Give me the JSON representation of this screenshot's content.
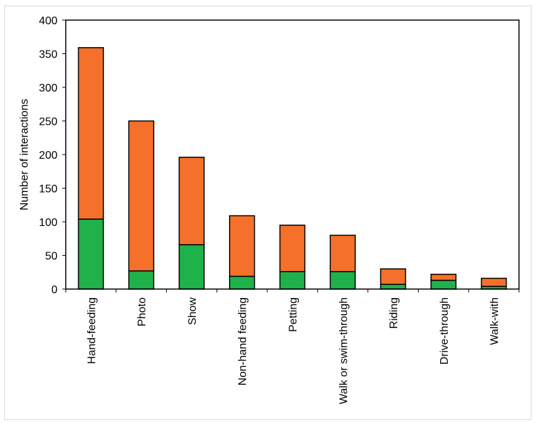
{
  "chart_data": {
    "type": "bar",
    "stacked": true,
    "categories": [
      "Hand-feeding",
      "Photo",
      "Show",
      "Non-hand feeding",
      "Petting",
      "Walk or swim-through",
      "Riding",
      "Drive-through",
      "Walk-with"
    ],
    "series": [
      {
        "color": "#1fb14a",
        "values": [
          104,
          27,
          66,
          19,
          26,
          26,
          7,
          13,
          4
        ]
      },
      {
        "color": "#f5702a",
        "values": [
          255,
          223,
          130,
          90,
          69,
          54,
          23,
          9,
          12
        ]
      }
    ],
    "totals": [
      359,
      250,
      196,
      109,
      95,
      80,
      30,
      22,
      16
    ],
    "ylabel": "Number of interactions",
    "xlabel": "",
    "ylim": [
      0,
      400
    ],
    "yticks": [
      0,
      50,
      100,
      150,
      200,
      250,
      300,
      350,
      400
    ],
    "grid": false,
    "legend": "none"
  }
}
